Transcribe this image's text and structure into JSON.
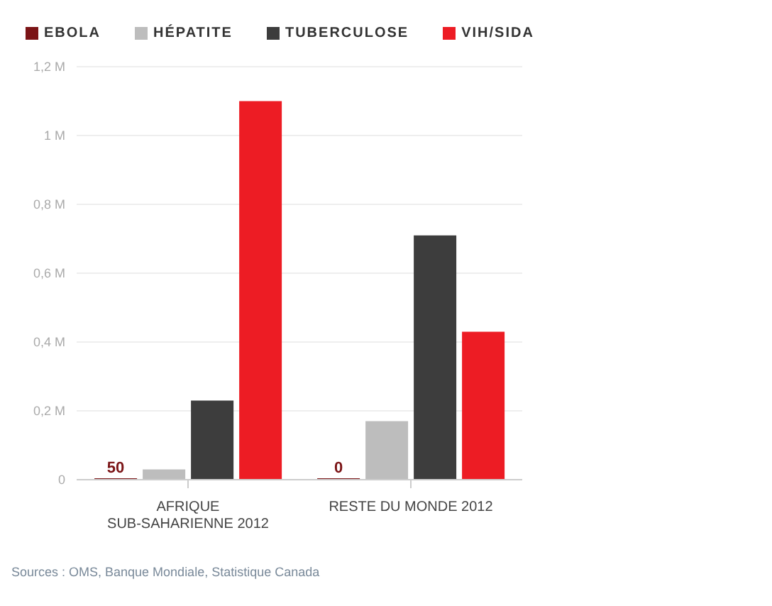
{
  "chart_data": {
    "type": "bar",
    "categories": [
      "AFRIQUE SUB-SAHARIENNE 2012",
      "RESTE DU MONDE 2012"
    ],
    "series": [
      {
        "name": "EBOLA",
        "color": "#7b1416",
        "values": [
          50,
          0
        ],
        "value_labels": [
          "50",
          "0"
        ]
      },
      {
        "name": "HÉPATITE",
        "color": "#bdbdbd",
        "values": [
          30000,
          170000
        ]
      },
      {
        "name": "TUBERCULOSE",
        "color": "#3d3d3d",
        "values": [
          230000,
          710000
        ]
      },
      {
        "name": "VIH/SIDA",
        "color": "#ed1c24",
        "values": [
          1100000,
          430000
        ]
      }
    ],
    "ylim": [
      0,
      1200000
    ],
    "yticks": [
      {
        "value": 0,
        "label": "0"
      },
      {
        "value": 200000,
        "label": "0,2 M"
      },
      {
        "value": 400000,
        "label": "0,4 M"
      },
      {
        "value": 600000,
        "label": "0,6 M"
      },
      {
        "value": 800000,
        "label": "0,8 M"
      },
      {
        "value": 1000000,
        "label": "1 M"
      },
      {
        "value": 1200000,
        "label": "1,2 M"
      }
    ],
    "grid": "y",
    "legend": "top left",
    "annotations": [
      "Sources : OMS, Banque Mondiale, Statistique Canada"
    ]
  }
}
